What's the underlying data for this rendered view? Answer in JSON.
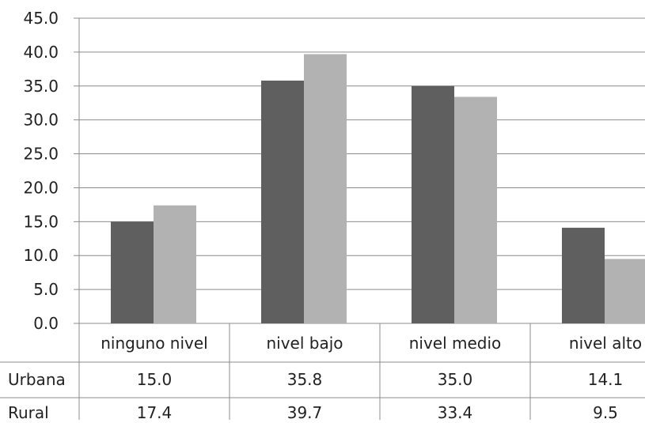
{
  "chart_data": {
    "type": "bar",
    "categories": [
      "ninguno nivel",
      "nivel bajo",
      "nivel medio",
      "nivel alto"
    ],
    "series": [
      {
        "name": "Urbana",
        "values": [
          15.0,
          35.8,
          35.0,
          14.1
        ],
        "color": "#5f5f5f"
      },
      {
        "name": "Rural",
        "values": [
          17.4,
          39.7,
          33.4,
          9.5
        ],
        "color": "#b2b2b2"
      }
    ],
    "value_labels": [
      [
        "15.0",
        "35.8",
        "35.0",
        "14.1"
      ],
      [
        "17.4",
        "39.7",
        "33.4",
        "9.5"
      ]
    ],
    "y_ticks": [
      "0.0",
      "5.0",
      "10.0",
      "15.0",
      "20.0",
      "25.0",
      "30.0",
      "35.0",
      "40.0",
      "45.0"
    ],
    "ylim": [
      0,
      45
    ],
    "grid": true,
    "legend": "data table below plot"
  }
}
